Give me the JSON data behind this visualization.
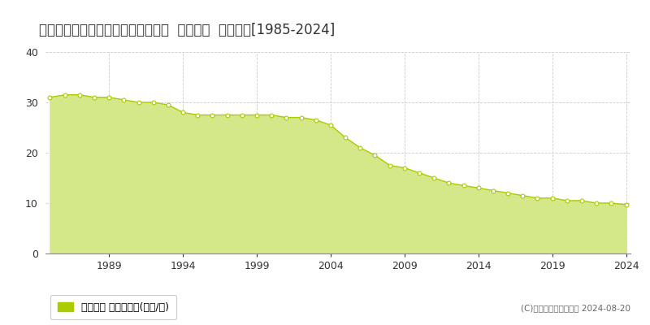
{
  "title": "北海道登別市中央町２丁目１２番８  地価公示  地価推移[1985-2024]",
  "years": [
    1985,
    1986,
    1987,
    1988,
    1989,
    1990,
    1991,
    1992,
    1993,
    1994,
    1995,
    1996,
    1997,
    1998,
    1999,
    2000,
    2001,
    2002,
    2003,
    2004,
    2005,
    2006,
    2007,
    2008,
    2009,
    2010,
    2011,
    2012,
    2013,
    2014,
    2015,
    2016,
    2017,
    2018,
    2019,
    2020,
    2021,
    2022,
    2023,
    2024
  ],
  "values": [
    31,
    31.5,
    31.5,
    31,
    31,
    30.5,
    30,
    30,
    29.5,
    28,
    27.5,
    27.5,
    27.5,
    27.5,
    27.5,
    27.5,
    27,
    27,
    26.5,
    25.5,
    23,
    21,
    19.5,
    17.5,
    17,
    16,
    15,
    14,
    13.5,
    13,
    12.5,
    12,
    11.5,
    11,
    11,
    10.5,
    10.5,
    10,
    10,
    9.7
  ],
  "line_color": "#aacc00",
  "fill_color": "#d4e88a",
  "marker_color": "#ffffff",
  "marker_edge_color": "#aacc00",
  "ylim": [
    0,
    40
  ],
  "yticks": [
    0,
    10,
    20,
    30,
    40
  ],
  "xticks": [
    1989,
    1994,
    1999,
    2004,
    2009,
    2014,
    2019,
    2024
  ],
  "grid_color": "#cccccc",
  "bg_color": "#ffffff",
  "plot_bg_color": "#ffffff",
  "legend_label": "地価公示 平均坪単価(万円/坪)",
  "legend_marker_color": "#aacc00",
  "copyright_text": "(C)土地価格ドットコム 2024-08-20",
  "title_fontsize": 12,
  "tick_fontsize": 9,
  "legend_fontsize": 9
}
